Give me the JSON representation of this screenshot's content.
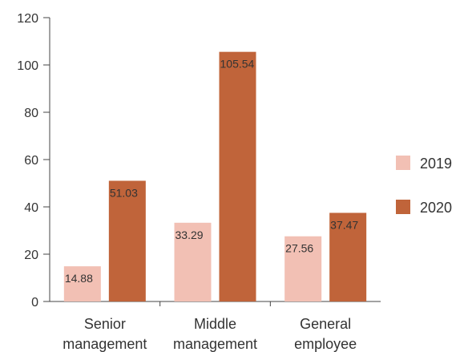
{
  "chart_data": {
    "type": "bar",
    "categories": [
      [
        "Senior",
        "management"
      ],
      [
        "Middle",
        "management"
      ],
      [
        "General",
        "employee"
      ]
    ],
    "series": [
      {
        "name": "2019",
        "values": [
          14.88,
          33.29,
          27.56
        ],
        "color": "#f2c0b4"
      },
      {
        "name": "2020",
        "values": [
          51.03,
          105.54,
          37.47
        ],
        "color": "#c0643a"
      }
    ],
    "data_labels": [
      [
        "14.88",
        "33.29",
        "27.56"
      ],
      [
        "51.03",
        "105.54",
        "37.47"
      ]
    ],
    "ylim": [
      0,
      120
    ],
    "yticks": [
      0,
      20,
      40,
      60,
      80,
      100,
      120
    ],
    "grid": false,
    "legend_position": "right"
  }
}
